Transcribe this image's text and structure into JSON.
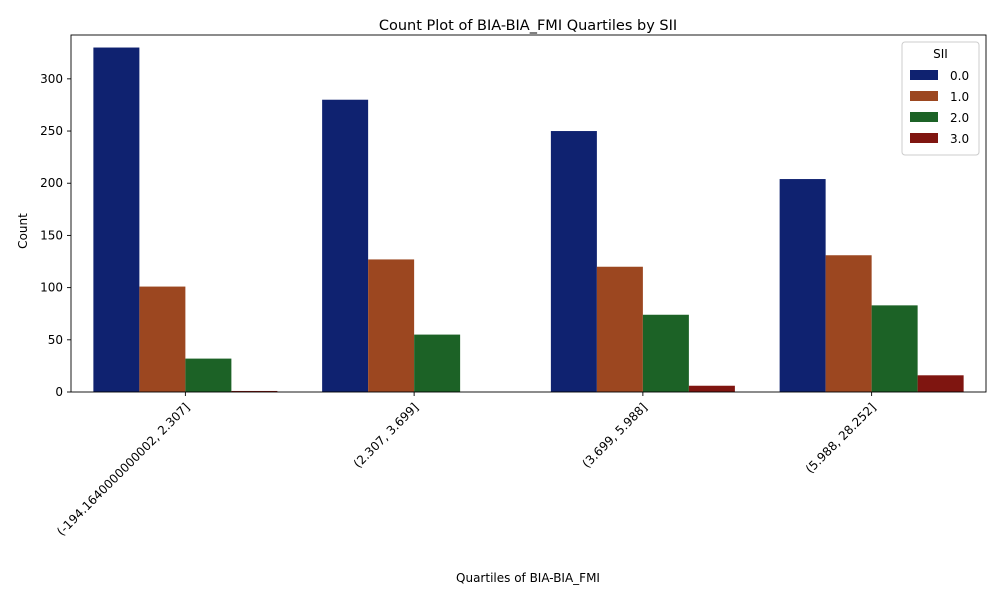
{
  "chart_data": {
    "type": "bar",
    "title": "Count Plot of BIA-BIA_FMI Quartiles by SII",
    "xlabel": "Quartiles of BIA-BIA_FMI",
    "ylabel": "Count",
    "categories": [
      "(-194.1640000000002, 2.307]",
      "(2.307, 3.699]",
      "(3.699, 5.988]",
      "(5.988, 28.252]"
    ],
    "series": [
      {
        "name": "0.0",
        "color": "#0f2270",
        "values": [
          330,
          280,
          250,
          204
        ]
      },
      {
        "name": "1.0",
        "color": "#9c4720",
        "values": [
          101,
          127,
          120,
          131
        ]
      },
      {
        "name": "2.0",
        "color": "#1c6226",
        "values": [
          32,
          55,
          74,
          83
        ]
      },
      {
        "name": "3.0",
        "color": "#7f1510",
        "values": [
          1,
          0,
          6,
          16
        ]
      }
    ],
    "ylim": [
      0,
      342
    ],
    "yticks": [
      0,
      50,
      100,
      150,
      200,
      250,
      300
    ],
    "grid": false,
    "legend": {
      "title": "SII",
      "placement": "top-right"
    }
  }
}
